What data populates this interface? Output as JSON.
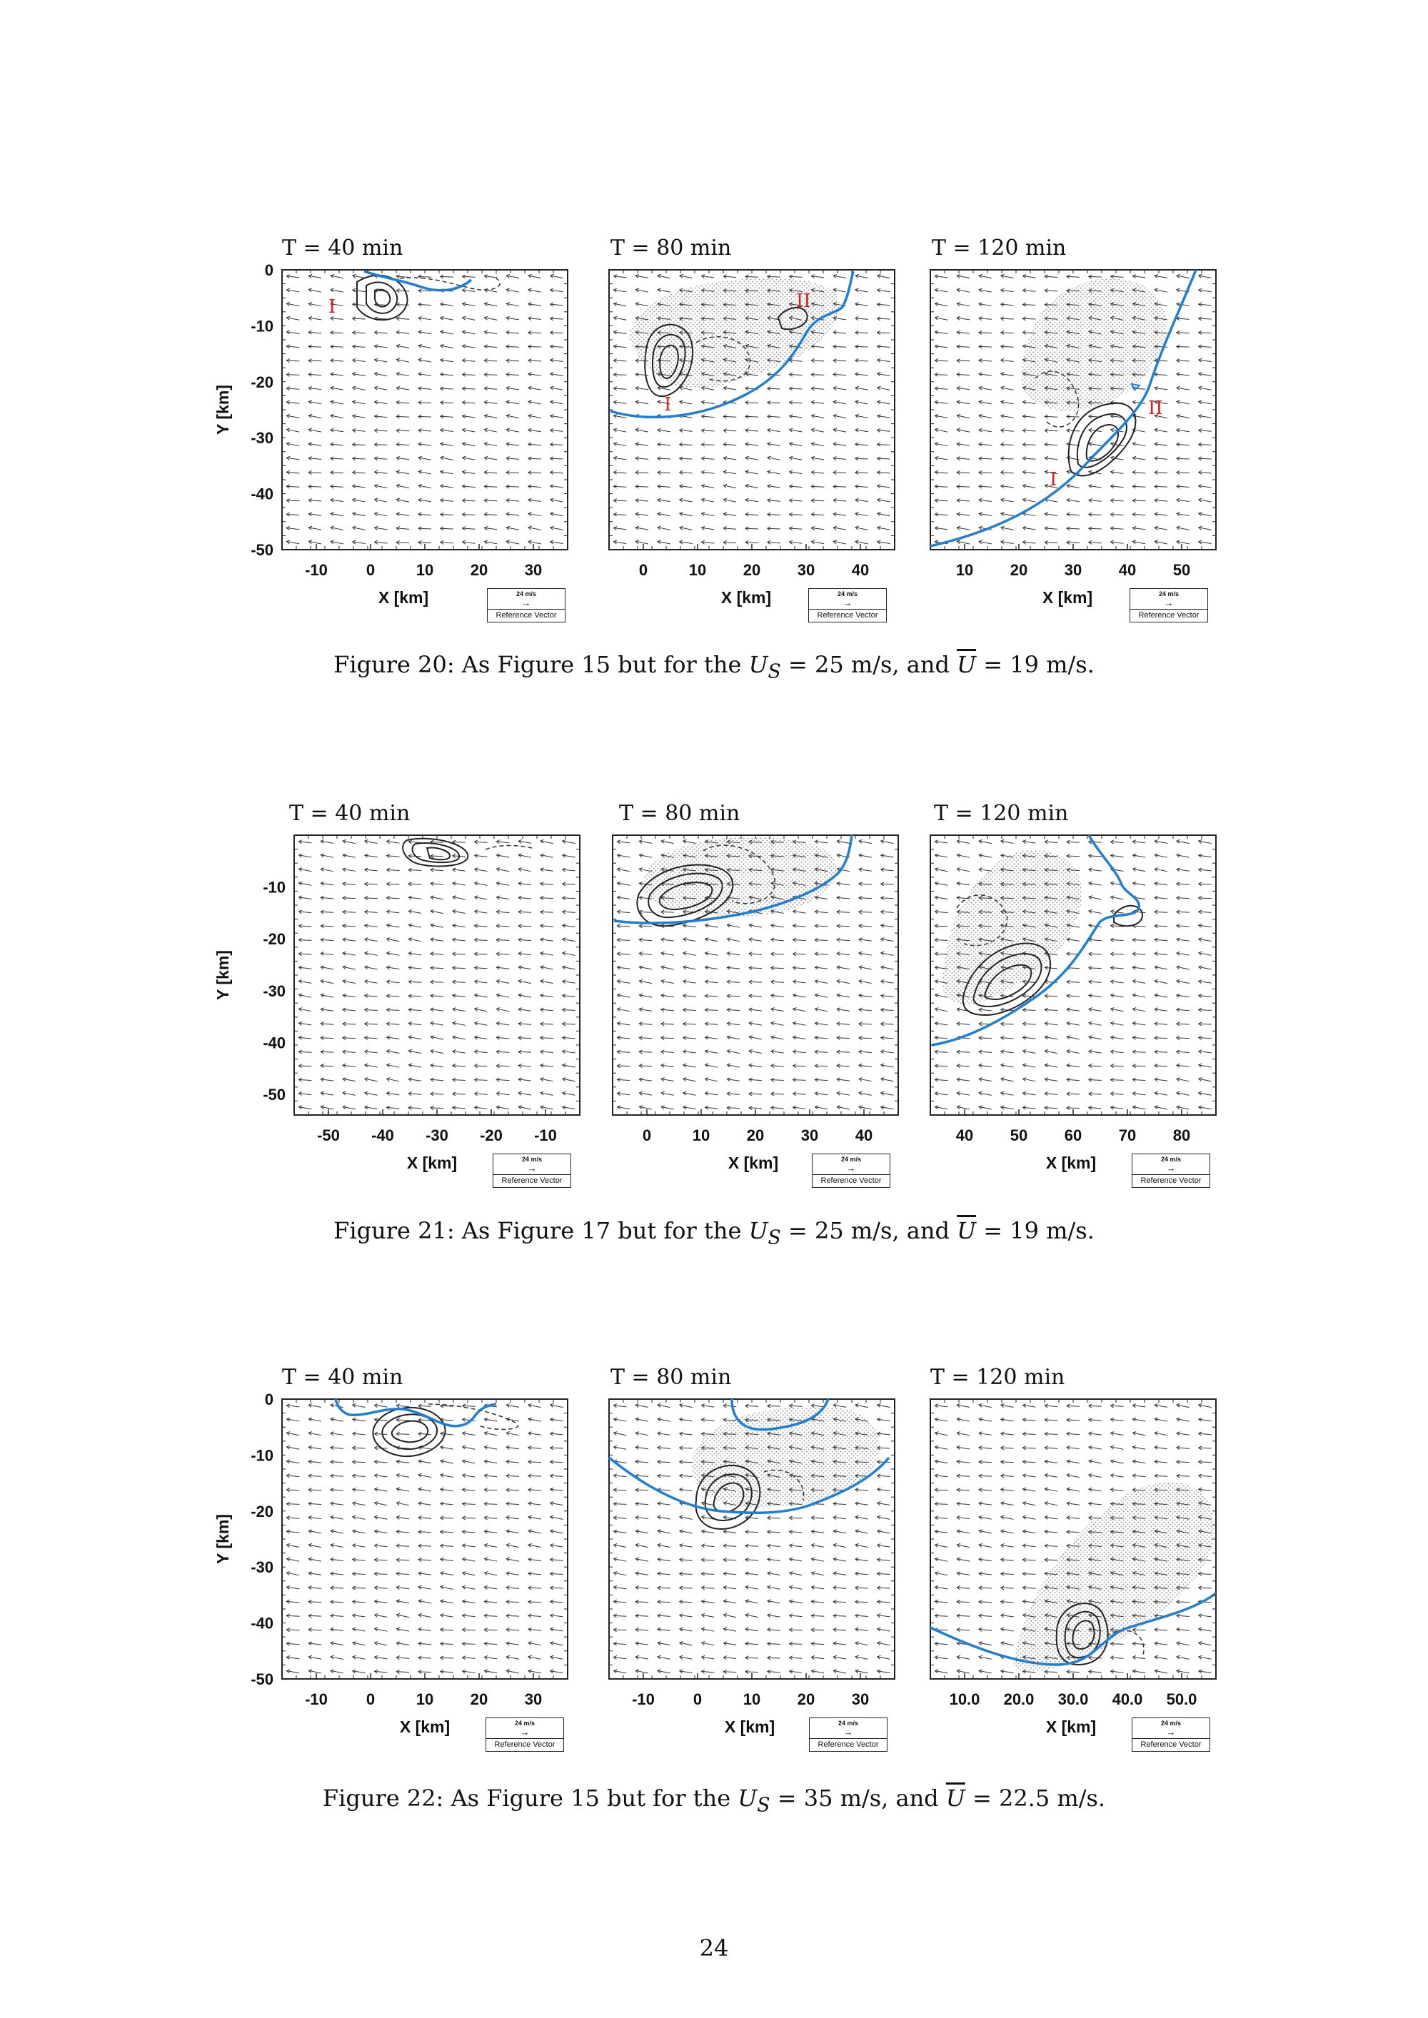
{
  "figures": [
    {
      "panels": [
        {
          "title": "T = 40 min",
          "xticks": [
            "-10",
            "0",
            "10",
            "20",
            "30"
          ],
          "yticks": [
            "0",
            "-10",
            "-20",
            "-30",
            "-40",
            "-50"
          ],
          "xlabel": "X [km]",
          "ylabel": "Y [km]",
          "labels": [
            "I"
          ]
        },
        {
          "title": "T = 80 min",
          "xticks": [
            "0",
            "10",
            "20",
            "30",
            "40"
          ],
          "yticks": [],
          "xlabel": "X [km]",
          "ylabel": "",
          "labels": [
            "I",
            "II"
          ]
        },
        {
          "title": "T = 120 min",
          "xticks": [
            "10",
            "20",
            "30",
            "40",
            "50"
          ],
          "yticks": [],
          "xlabel": "X [km]",
          "ylabel": "",
          "labels": [
            "I",
            "II"
          ]
        }
      ],
      "caption": {
        "prefix": "Figure 20:  As Figure 15 but for the ",
        "us_sym": "U",
        "us_sub": "S",
        "us_val": " = 25 m/s, and ",
        "ubar_sym": "U",
        "ubar_val": " = 19 m/s."
      }
    },
    {
      "panels": [
        {
          "title": "T = 40 min",
          "xticks": [
            "-50",
            "-40",
            "-30",
            "-20",
            "-10"
          ],
          "yticks": [
            "-10",
            "-20",
            "-30",
            "-40",
            "-50"
          ],
          "xlabel": "X [km]",
          "ylabel": "Y [km]",
          "labels": []
        },
        {
          "title": "T = 80 min",
          "xticks": [
            "0",
            "10",
            "20",
            "30",
            "40"
          ],
          "yticks": [],
          "xlabel": "X [km]",
          "ylabel": "",
          "labels": []
        },
        {
          "title": "T = 120 min",
          "xticks": [
            "40",
            "50",
            "60",
            "70",
            "80"
          ],
          "yticks": [],
          "xlabel": "X [km]",
          "ylabel": "",
          "labels": []
        }
      ],
      "caption": {
        "prefix": "Figure 21:  As Figure 17 but for the ",
        "us_sym": "U",
        "us_sub": "S",
        "us_val": " = 25 m/s, and ",
        "ubar_sym": "U",
        "ubar_val": " = 19 m/s."
      }
    },
    {
      "panels": [
        {
          "title": "T = 40 min",
          "xticks": [
            "-10",
            "0",
            "10",
            "20",
            "30"
          ],
          "yticks": [
            "0",
            "-10",
            "-20",
            "-30",
            "-40",
            "-50"
          ],
          "xlabel": "X [km]",
          "ylabel": "Y [km]",
          "labels": []
        },
        {
          "title": "T = 80 min",
          "xticks": [
            "-10",
            "0",
            "10",
            "20",
            "30"
          ],
          "yticks": [],
          "xlabel": "X [km]",
          "ylabel": "",
          "labels": []
        },
        {
          "title": "T = 120 min",
          "xticks": [
            "10.0",
            "20.0",
            "30.0",
            "40.0",
            "50.0"
          ],
          "yticks": [],
          "xlabel": "X [km]",
          "ylabel": "",
          "labels": []
        }
      ],
      "caption": {
        "prefix": "Figure 22:  As Figure 15 but for the ",
        "us_sym": "U",
        "us_sub": "S",
        "us_val": " = 35 m/s, and ",
        "ubar_sym": "U",
        "ubar_val": " = 22.5 m/s."
      }
    }
  ],
  "reference_vector": {
    "speed": "24 m/s",
    "arrow": "→",
    "label": "Reference Vector"
  },
  "colors": {
    "outflow_boundary": "#1f7fd6",
    "roman_labels": "#d42020",
    "contours": "#222222",
    "stipple": "#9a9a9a"
  },
  "page_number": "24"
}
